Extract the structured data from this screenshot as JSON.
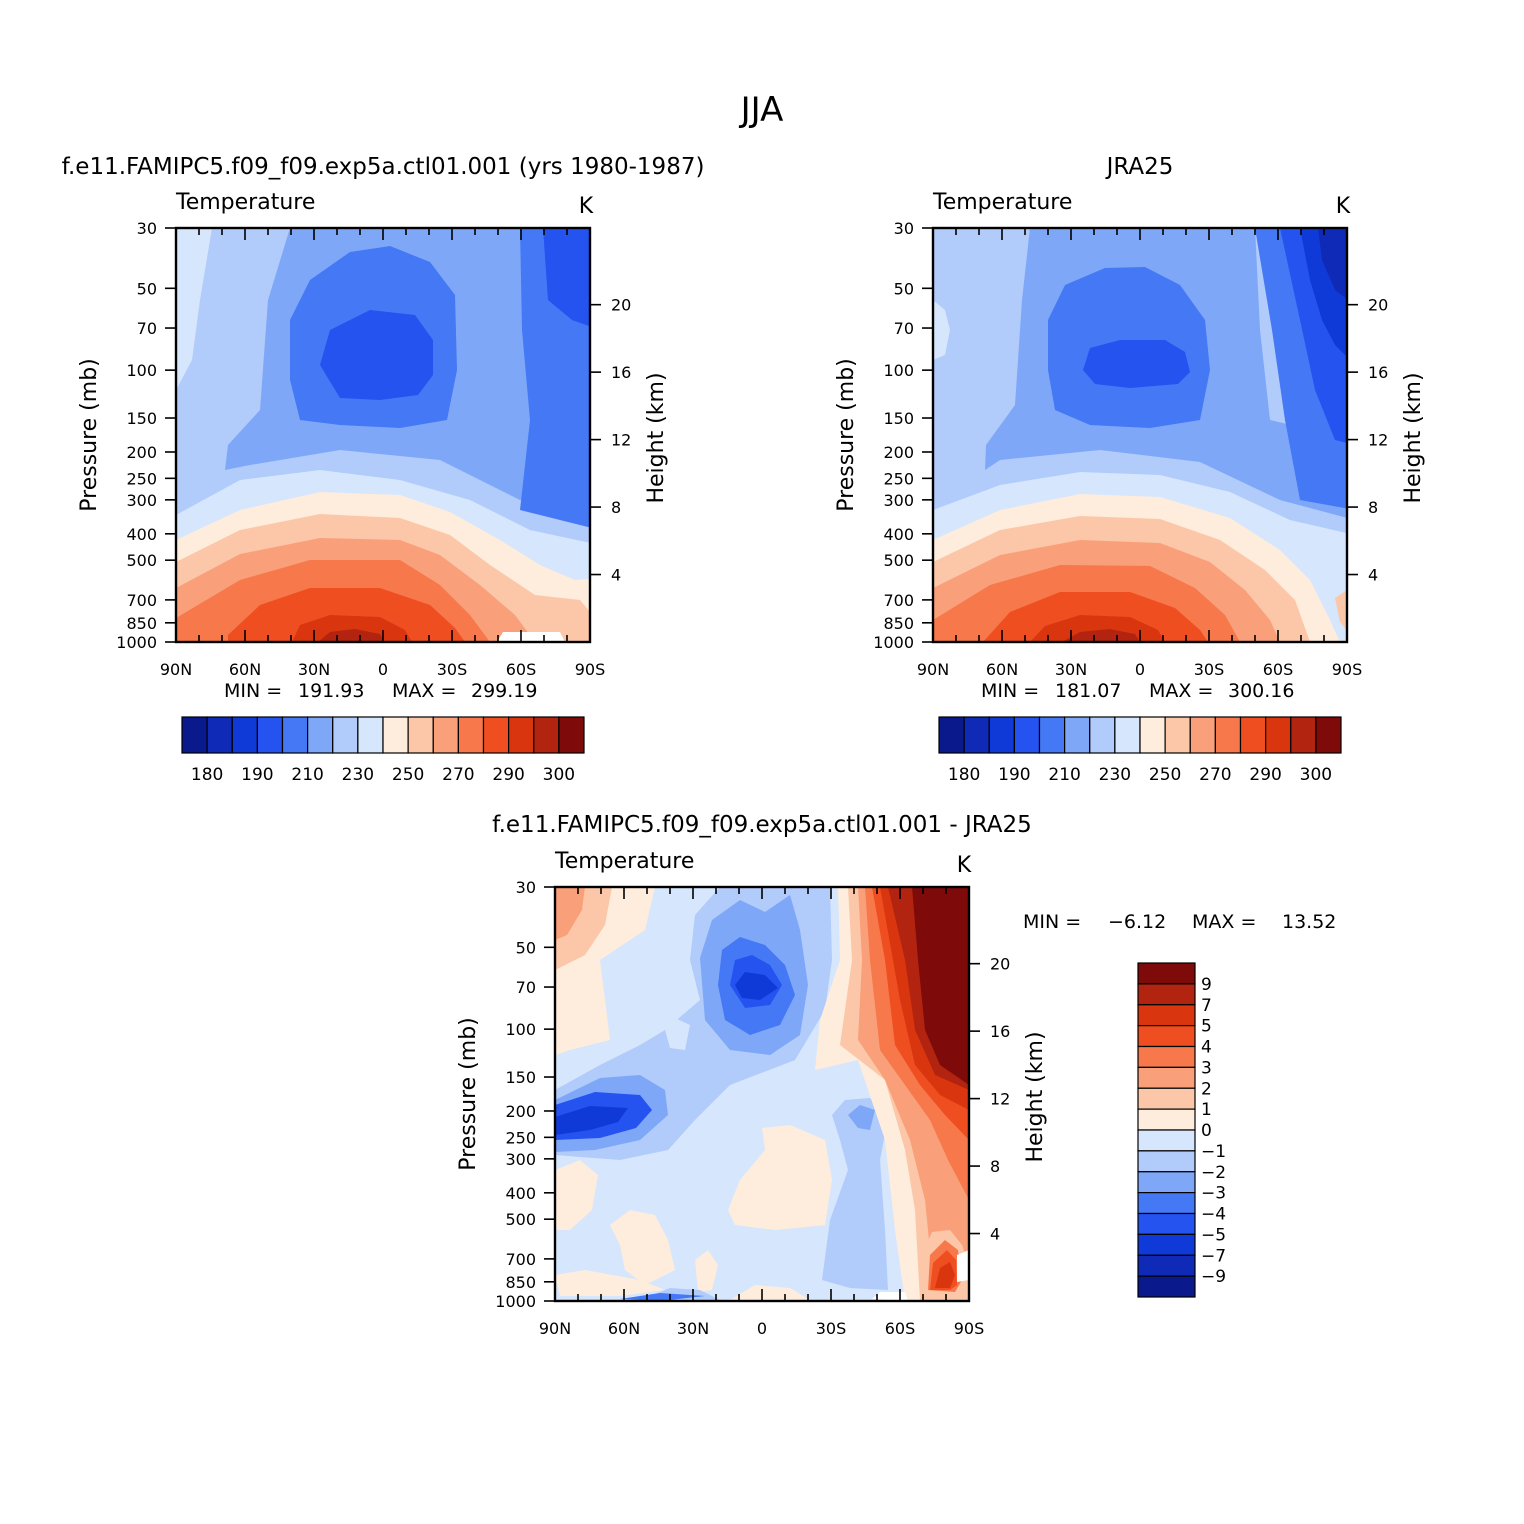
{
  "page": {
    "title": "JJA"
  },
  "chart_data": [
    {
      "type": "heatmap",
      "id": "model",
      "title": "f.e11.FAMIPC5.f09_f09.exp5a.ctl01.001 (yrs 1980-1987)",
      "variable": "Temperature",
      "units": "K",
      "xlabel": "",
      "ylabel": "Pressure (mb)",
      "y2label": "Height (km)",
      "x_ticks": [
        "90N",
        "60N",
        "30N",
        "0",
        "30S",
        "60S",
        "90S"
      ],
      "y_ticks": [
        "30",
        "50",
        "70",
        "100",
        "150",
        "200",
        "250",
        "300",
        "400",
        "500",
        "700",
        "850",
        "1000"
      ],
      "y2_ticks": [
        "20",
        "16",
        "12",
        "8",
        "4"
      ],
      "min_label": "MIN =",
      "min_value": "191.93",
      "max_label": "MAX =",
      "max_value": "299.19",
      "colorbar_labels": [
        "180",
        "190",
        "210",
        "230",
        "250",
        "270",
        "290",
        "300"
      ],
      "colors": [
        "#0a1a8c",
        "#0f2ab6",
        "#0f3ad8",
        "#2453f0",
        "#4478f5",
        "#7fa7f8",
        "#b1cbfb",
        "#d6e6fd",
        "#feeddc",
        "#fcc7a8",
        "#f9a07a",
        "#f6784b",
        "#ef4e20",
        "#d93610",
        "#b32410",
        "#7e0a0a"
      ]
    },
    {
      "type": "heatmap",
      "id": "obs",
      "title": "JRA25",
      "variable": "Temperature",
      "units": "K",
      "xlabel": "",
      "ylabel": "Pressure (mb)",
      "y2label": "Height (km)",
      "x_ticks": [
        "90N",
        "60N",
        "30N",
        "0",
        "30S",
        "60S",
        "90S"
      ],
      "y_ticks": [
        "30",
        "50",
        "70",
        "100",
        "150",
        "200",
        "250",
        "300",
        "400",
        "500",
        "700",
        "850",
        "1000"
      ],
      "y2_ticks": [
        "20",
        "16",
        "12",
        "8",
        "4"
      ],
      "min_label": "MIN =",
      "min_value": "181.07",
      "max_label": "MAX =",
      "max_value": "300.16",
      "colorbar_labels": [
        "180",
        "190",
        "210",
        "230",
        "250",
        "270",
        "290",
        "300"
      ],
      "colors": [
        "#0a1a8c",
        "#0f2ab6",
        "#0f3ad8",
        "#2453f0",
        "#4478f5",
        "#7fa7f8",
        "#b1cbfb",
        "#d6e6fd",
        "#feeddc",
        "#fcc7a8",
        "#f9a07a",
        "#f6784b",
        "#ef4e20",
        "#d93610",
        "#b32410",
        "#7e0a0a"
      ]
    },
    {
      "type": "heatmap",
      "id": "diff",
      "title": "f.e11.FAMIPC5.f09_f09.exp5a.ctl01.001 - JRA25",
      "variable": "Temperature",
      "units": "K",
      "xlabel": "",
      "ylabel": "Pressure (mb)",
      "y2label": "Height (km)",
      "x_ticks": [
        "90N",
        "60N",
        "30N",
        "0",
        "30S",
        "60S",
        "90S"
      ],
      "y_ticks": [
        "30",
        "50",
        "70",
        "100",
        "150",
        "200",
        "250",
        "300",
        "400",
        "500",
        "700",
        "850",
        "1000"
      ],
      "y2_ticks": [
        "20",
        "16",
        "12",
        "8",
        "4"
      ],
      "min_label": "MIN =",
      "min_value": "-6.12",
      "max_label": "MAX =",
      "max_value": "13.52",
      "colorbar_labels": [
        "9",
        "7",
        "5",
        "4",
        "3",
        "2",
        "1",
        "0",
        "-1",
        "-2",
        "-3",
        "-4",
        "-5",
        "-7",
        "-9"
      ],
      "colors": [
        "#7e0a0a",
        "#b32410",
        "#d93610",
        "#ef4e20",
        "#f6784b",
        "#f9a07a",
        "#fcc7a8",
        "#feeddc",
        "#d6e6fd",
        "#b1cbfb",
        "#7fa7f8",
        "#4478f5",
        "#2453f0",
        "#0f3ad8",
        "#0f2ab6",
        "#0a1a8c"
      ]
    }
  ]
}
